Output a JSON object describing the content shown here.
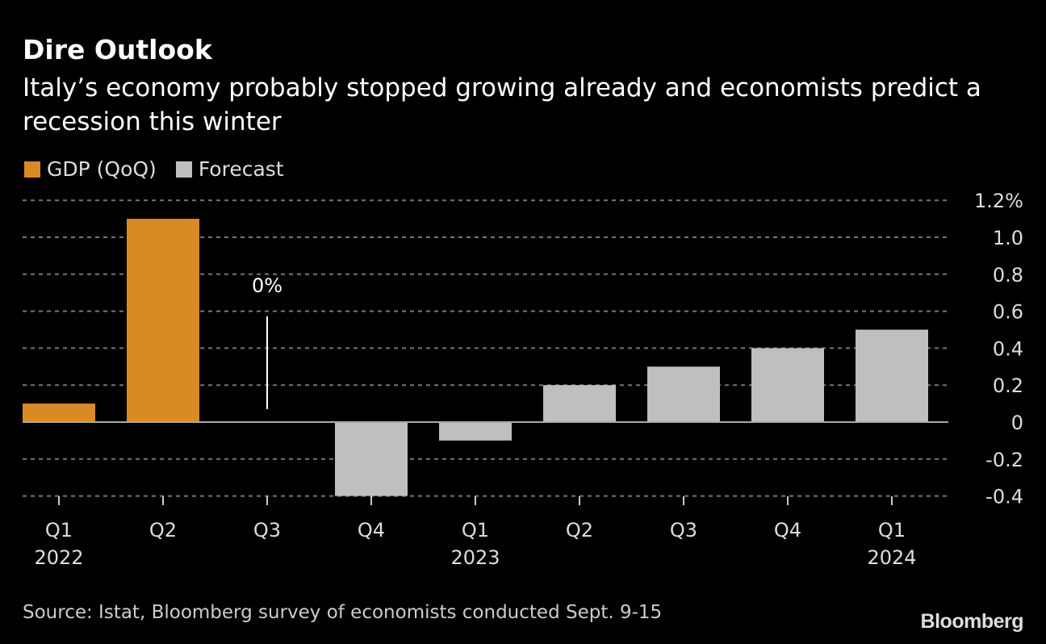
{
  "chart_data": {
    "type": "bar",
    "title": "Dire Outlook",
    "subtitle": "Italy’s economy probably stopped growing already and economists predict a recession this winter",
    "legend": [
      {
        "name": "GDP (QoQ)",
        "color": "#DA8A23"
      },
      {
        "name": "Forecast",
        "color": "#BFBFBF"
      }
    ],
    "legend_position": "top-left",
    "categories": [
      "Q1",
      "Q2",
      "Q3",
      "Q4",
      "Q1",
      "Q2",
      "Q3",
      "Q4",
      "Q1"
    ],
    "year_labels": {
      "0": "2022",
      "4": "2023",
      "8": "2024"
    },
    "values": [
      0.1,
      1.1,
      0.0,
      -0.4,
      -0.1,
      0.2,
      0.3,
      0.4,
      0.5
    ],
    "series_index": [
      0,
      0,
      1,
      1,
      1,
      1,
      1,
      1,
      1
    ],
    "annotation": {
      "category_index": 2,
      "text": "0%"
    },
    "ylim": [
      -0.4,
      1.2
    ],
    "yticks": [
      {
        "v": 1.2,
        "label": "1.2%"
      },
      {
        "v": 1.0,
        "label": "1.0"
      },
      {
        "v": 0.8,
        "label": "0.8"
      },
      {
        "v": 0.6,
        "label": "0.6"
      },
      {
        "v": 0.4,
        "label": "0.4"
      },
      {
        "v": 0.2,
        "label": "0.2"
      },
      {
        "v": 0,
        "label": "0"
      },
      {
        "v": -0.2,
        "label": "-0.2"
      },
      {
        "v": -0.4,
        "label": "-0.4"
      }
    ],
    "y_axis_side": "right",
    "grid": true,
    "xlabel": "",
    "ylabel": ""
  },
  "source": "Source: Istat, Bloomberg survey of economists conducted Sept. 9-15",
  "logo": "Bloomberg"
}
